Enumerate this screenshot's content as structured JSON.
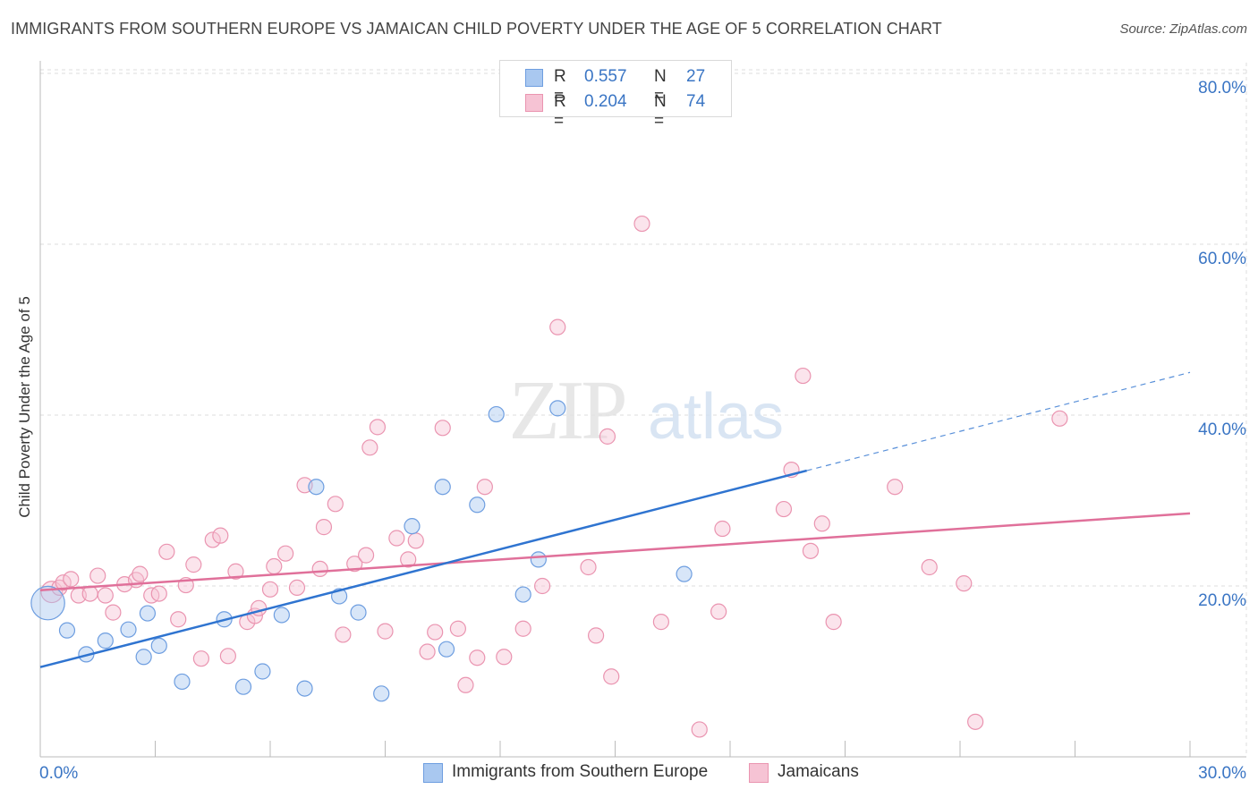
{
  "header": {
    "title": "IMMIGRANTS FROM SOUTHERN EUROPE VS JAMAICAN CHILD POVERTY UNDER THE AGE OF 5 CORRELATION CHART",
    "source": "Source: ZipAtlas.com"
  },
  "watermark": {
    "zip": "ZIP",
    "atlas": "atlas"
  },
  "legend": {
    "rows": [
      {
        "r_label": "R =",
        "r_value": "0.557",
        "n_label": "N =",
        "n_value": "27"
      },
      {
        "r_label": "R =",
        "r_value": "0.204",
        "n_label": "N =",
        "n_value": "74"
      }
    ]
  },
  "bottom_legend": {
    "series1": "Immigrants from Southern Europe",
    "series2": "Jamaicans"
  },
  "colors": {
    "blue_fill": "#a9c8f0",
    "blue_stroke": "#6e9ee0",
    "blue_line": "#2f74d0",
    "pink_fill": "#f6c3d4",
    "pink_stroke": "#ea94b0",
    "pink_line": "#e0709a",
    "tick_label": "#3a75c4",
    "grid": "#dddddd"
  },
  "chart_data": {
    "type": "scatter",
    "title": "IMMIGRANTS FROM SOUTHERN EUROPE VS JAMAICAN CHILD POVERTY UNDER THE AGE OF 5 CORRELATION CHART",
    "xlabel": "",
    "ylabel": "Child Poverty Under the Age of 5",
    "xlim": [
      0,
      30
    ],
    "ylim": [
      0,
      82
    ],
    "x_tick_labels": [
      {
        "value": 0,
        "label": "0.0%"
      },
      {
        "value": 30,
        "label": "30.0%"
      }
    ],
    "y_tick_labels": [
      {
        "value": 20,
        "label": "20.0%"
      },
      {
        "value": 40,
        "label": "40.0%"
      },
      {
        "value": 60,
        "label": "60.0%"
      },
      {
        "value": 80,
        "label": "80.0%"
      }
    ],
    "series": [
      {
        "name": "Immigrants from Southern Europe",
        "color": "blue",
        "trend": {
          "x0": 0,
          "y0": 10.5,
          "x1": 20,
          "y1": 33.5,
          "dash_to_x": 30,
          "dash_to_y": 45
        },
        "points": [
          [
            0.2,
            18.0,
            2.2
          ],
          [
            0.7,
            14.8,
            1
          ],
          [
            1.2,
            12.0,
            1
          ],
          [
            1.7,
            13.6,
            1
          ],
          [
            2.3,
            14.9,
            1
          ],
          [
            2.7,
            11.7,
            1
          ],
          [
            2.8,
            16.8,
            1
          ],
          [
            3.1,
            13.0,
            1
          ],
          [
            3.7,
            8.8,
            1
          ],
          [
            4.8,
            16.1,
            1
          ],
          [
            5.3,
            8.2,
            1
          ],
          [
            5.8,
            10.0,
            1
          ],
          [
            6.3,
            16.6,
            1
          ],
          [
            6.9,
            8.0,
            1
          ],
          [
            7.2,
            31.6,
            1
          ],
          [
            7.8,
            18.8,
            1
          ],
          [
            8.3,
            16.9,
            1
          ],
          [
            8.9,
            7.4,
            1
          ],
          [
            9.7,
            27.0,
            1
          ],
          [
            10.5,
            31.6,
            1
          ],
          [
            10.6,
            12.6,
            1
          ],
          [
            11.4,
            29.5,
            1
          ],
          [
            11.9,
            40.1,
            1
          ],
          [
            12.6,
            19.0,
            1
          ],
          [
            13.0,
            23.1,
            1
          ],
          [
            13.5,
            40.8,
            1
          ],
          [
            16.8,
            21.4,
            1
          ]
        ]
      },
      {
        "name": "Jamaicans",
        "color": "pink",
        "trend": {
          "x0": 0,
          "y0": 19.5,
          "x1": 30,
          "y1": 28.5
        },
        "points": [
          [
            0.3,
            19.3,
            1.4
          ],
          [
            0.5,
            19.8,
            1
          ],
          [
            0.6,
            20.4,
            1
          ],
          [
            0.8,
            20.8,
            1
          ],
          [
            1.0,
            18.9,
            1
          ],
          [
            1.3,
            19.1,
            1
          ],
          [
            1.5,
            21.2,
            1
          ],
          [
            1.7,
            18.9,
            1
          ],
          [
            1.9,
            16.9,
            1
          ],
          [
            2.2,
            20.2,
            1
          ],
          [
            2.5,
            20.7,
            1
          ],
          [
            2.6,
            21.4,
            1
          ],
          [
            2.9,
            18.9,
            1
          ],
          [
            3.1,
            19.1,
            1
          ],
          [
            3.3,
            24.0,
            1
          ],
          [
            3.6,
            16.1,
            1
          ],
          [
            3.8,
            20.1,
            1
          ],
          [
            4.0,
            22.5,
            1
          ],
          [
            4.2,
            11.5,
            1
          ],
          [
            4.5,
            25.4,
            1
          ],
          [
            4.7,
            25.9,
            1
          ],
          [
            4.9,
            11.8,
            1
          ],
          [
            5.1,
            21.7,
            1
          ],
          [
            5.4,
            15.8,
            1
          ],
          [
            5.6,
            16.5,
            1
          ],
          [
            5.7,
            17.4,
            1
          ],
          [
            6.0,
            19.6,
            1
          ],
          [
            6.1,
            22.3,
            1
          ],
          [
            6.4,
            23.8,
            1
          ],
          [
            6.7,
            19.8,
            1
          ],
          [
            6.9,
            31.8,
            1
          ],
          [
            7.3,
            22.0,
            1
          ],
          [
            7.4,
            26.9,
            1
          ],
          [
            7.7,
            29.6,
            1
          ],
          [
            7.9,
            14.3,
            1
          ],
          [
            8.2,
            22.6,
            1
          ],
          [
            8.5,
            23.6,
            1
          ],
          [
            8.6,
            36.2,
            1
          ],
          [
            8.8,
            38.6,
            1
          ],
          [
            9.0,
            14.7,
            1
          ],
          [
            9.3,
            25.6,
            1
          ],
          [
            9.6,
            23.1,
            1
          ],
          [
            9.8,
            25.3,
            1
          ],
          [
            10.1,
            12.3,
            1
          ],
          [
            10.3,
            14.6,
            1
          ],
          [
            10.5,
            38.5,
            1
          ],
          [
            10.9,
            15.0,
            1
          ],
          [
            11.1,
            8.4,
            1
          ],
          [
            11.4,
            11.6,
            1
          ],
          [
            11.6,
            31.6,
            1
          ],
          [
            12.1,
            11.7,
            1
          ],
          [
            12.6,
            15.0,
            1
          ],
          [
            13.1,
            20.0,
            1
          ],
          [
            13.5,
            50.3,
            1
          ],
          [
            14.3,
            22.2,
            1
          ],
          [
            14.5,
            14.2,
            1
          ],
          [
            14.8,
            37.5,
            1
          ],
          [
            14.9,
            9.4,
            1
          ],
          [
            15.7,
            62.4,
            1
          ],
          [
            16.2,
            15.8,
            1
          ],
          [
            17.2,
            3.2,
            1
          ],
          [
            17.7,
            17.0,
            1
          ],
          [
            17.8,
            26.7,
            1
          ],
          [
            19.4,
            29.0,
            1
          ],
          [
            19.6,
            33.6,
            1
          ],
          [
            19.9,
            44.6,
            1
          ],
          [
            20.1,
            24.1,
            1
          ],
          [
            20.4,
            27.3,
            1
          ],
          [
            20.7,
            15.8,
            1
          ],
          [
            22.3,
            31.6,
            1
          ],
          [
            23.2,
            22.2,
            1
          ],
          [
            24.1,
            20.3,
            1
          ],
          [
            24.4,
            4.1,
            1
          ],
          [
            26.6,
            39.6,
            1
          ]
        ]
      }
    ]
  }
}
